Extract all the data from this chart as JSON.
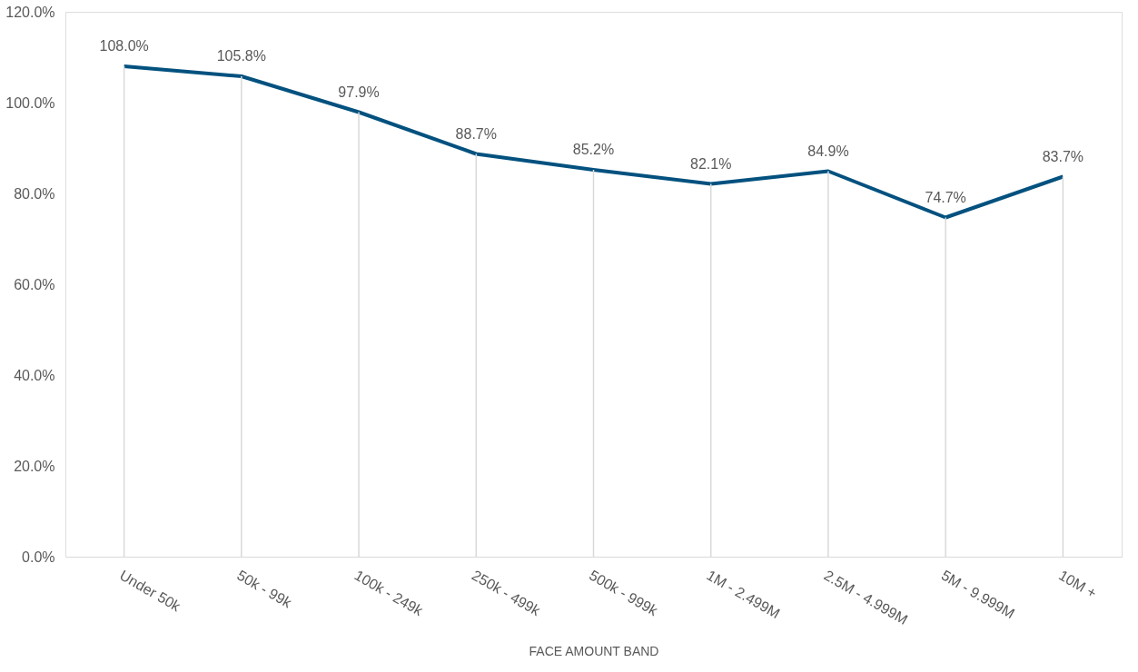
{
  "chart_data": {
    "type": "line",
    "xlabel": "FACE AMOUNT BAND",
    "categories": [
      "Under 50k",
      "50k - 99k",
      "100k - 249k",
      "250k - 499k",
      "500k - 999k",
      "1M - 2.499M",
      "2.5M - 4.999M",
      "5M - 9.999M",
      "10M +"
    ],
    "series": [
      {
        "color": "#02517f",
        "values": [
          108.0,
          105.8,
          97.9,
          88.7,
          85.2,
          82.1,
          84.9,
          74.7,
          83.7
        ],
        "value_labels": [
          "108.0%",
          "105.8%",
          "97.9%",
          "88.7%",
          "85.2%",
          "82.1%",
          "84.9%",
          "74.7%",
          "83.7%"
        ]
      }
    ],
    "ylim": [
      0,
      120
    ],
    "yticks": [
      {
        "value": 0,
        "label": "0.0%"
      },
      {
        "value": 20,
        "label": "20.0%"
      },
      {
        "value": 40,
        "label": "40.0%"
      },
      {
        "value": 60,
        "label": "60.0%"
      },
      {
        "value": 80,
        "label": "80.0%"
      },
      {
        "value": 100,
        "label": "100.0%"
      },
      {
        "value": 120,
        "label": "120.0%"
      }
    ],
    "grid": false,
    "marker": "none",
    "line_style": "solid"
  }
}
